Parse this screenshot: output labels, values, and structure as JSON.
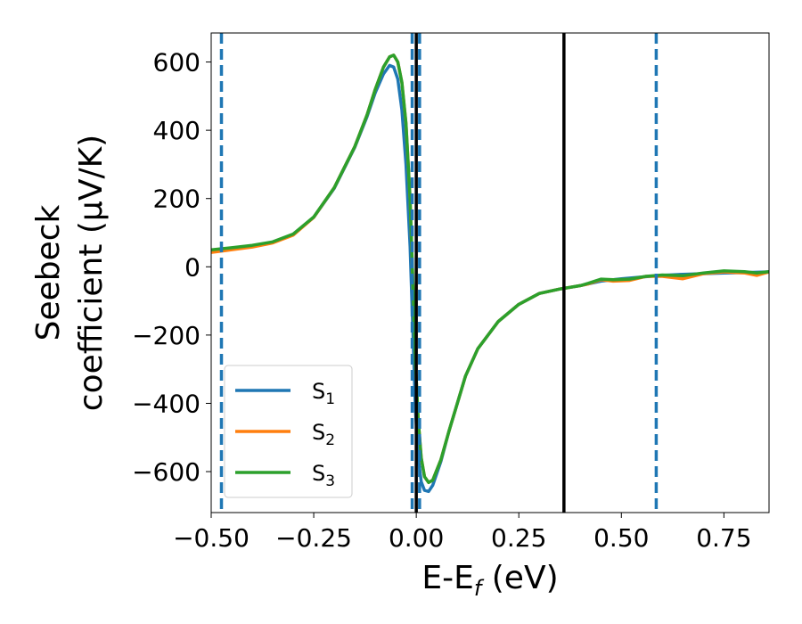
{
  "chart_data": {
    "type": "line",
    "xlabel": "E-E",
    "xlabel_sub": "f",
    "xlabel_unit": " (eV)",
    "ylabel_line1": "Seebeck",
    "ylabel_line2": "coefficient  (μV/K)",
    "xlim": [
      -0.5,
      0.86
    ],
    "ylim": [
      -720,
      685
    ],
    "xticks": [
      -0.5,
      -0.25,
      0.0,
      0.25,
      0.5,
      0.75
    ],
    "xtick_labels": [
      "−0.50",
      "−0.25",
      "0.00",
      "0.25",
      "0.50",
      "0.75"
    ],
    "yticks": [
      600,
      400,
      200,
      0,
      -200,
      -400,
      -600
    ],
    "ytick_labels": [
      "600",
      "400",
      "200",
      "0",
      "−200",
      "−400",
      "−600"
    ],
    "grid": false,
    "legend_position": "lower-left",
    "vlines": [
      {
        "x": -0.475,
        "style": "dashed",
        "color": "#1f77b4"
      },
      {
        "x": -0.01,
        "style": "dashed",
        "color": "#1f77b4"
      },
      {
        "x": 0.008,
        "style": "dashed",
        "color": "#1f77b4"
      },
      {
        "x": 0.0,
        "style": "solid",
        "color": "#000000"
      },
      {
        "x": 0.36,
        "style": "solid",
        "color": "#000000"
      },
      {
        "x": 0.585,
        "style": "dashed",
        "color": "#1f77b4"
      }
    ],
    "series": [
      {
        "name": "S",
        "sub": "1",
        "color": "#1f77b4",
        "points": [
          [
            -0.5,
            48
          ],
          [
            -0.45,
            55
          ],
          [
            -0.4,
            62
          ],
          [
            -0.35,
            72
          ],
          [
            -0.3,
            95
          ],
          [
            -0.25,
            145
          ],
          [
            -0.2,
            230
          ],
          [
            -0.15,
            350
          ],
          [
            -0.12,
            440
          ],
          [
            -0.1,
            510
          ],
          [
            -0.08,
            565
          ],
          [
            -0.065,
            590
          ],
          [
            -0.055,
            585
          ],
          [
            -0.045,
            550
          ],
          [
            -0.035,
            460
          ],
          [
            -0.025,
            300
          ],
          [
            -0.015,
            60
          ],
          [
            -0.008,
            -200
          ],
          [
            -0.002,
            -420
          ],
          [
            0.005,
            -560
          ],
          [
            0.012,
            -630
          ],
          [
            0.02,
            -655
          ],
          [
            0.03,
            -658
          ],
          [
            0.04,
            -640
          ],
          [
            0.06,
            -570
          ],
          [
            0.08,
            -480
          ],
          [
            0.1,
            -400
          ],
          [
            0.12,
            -320
          ],
          [
            0.15,
            -240
          ],
          [
            0.2,
            -160
          ],
          [
            0.25,
            -110
          ],
          [
            0.3,
            -78
          ],
          [
            0.35,
            -65
          ],
          [
            0.4,
            -55
          ],
          [
            0.45,
            -42
          ],
          [
            0.5,
            -35
          ],
          [
            0.55,
            -30
          ],
          [
            0.6,
            -25
          ],
          [
            0.65,
            -22
          ],
          [
            0.7,
            -20
          ],
          [
            0.75,
            -18
          ],
          [
            0.8,
            -17
          ],
          [
            0.86,
            -15
          ]
        ]
      },
      {
        "name": "S",
        "sub": "2",
        "color": "#ff7f0e",
        "points": [
          [
            -0.5,
            42
          ],
          [
            -0.45,
            50
          ],
          [
            -0.4,
            58
          ],
          [
            -0.35,
            70
          ],
          [
            -0.3,
            93
          ],
          [
            -0.25,
            145
          ],
          [
            -0.2,
            232
          ],
          [
            -0.15,
            352
          ],
          [
            -0.12,
            445
          ],
          [
            -0.1,
            520
          ],
          [
            -0.08,
            585
          ],
          [
            -0.065,
            615
          ],
          [
            -0.055,
            620
          ],
          [
            -0.045,
            600
          ],
          [
            -0.035,
            540
          ],
          [
            -0.025,
            420
          ],
          [
            -0.015,
            200
          ],
          [
            -0.008,
            -60
          ],
          [
            -0.002,
            -280
          ],
          [
            0.005,
            -450
          ],
          [
            0.012,
            -560
          ],
          [
            0.02,
            -615
          ],
          [
            0.03,
            -632
          ],
          [
            0.04,
            -625
          ],
          [
            0.06,
            -565
          ],
          [
            0.08,
            -480
          ],
          [
            0.1,
            -400
          ],
          [
            0.12,
            -320
          ],
          [
            0.15,
            -240
          ],
          [
            0.2,
            -160
          ],
          [
            0.25,
            -110
          ],
          [
            0.3,
            -78
          ],
          [
            0.35,
            -65
          ],
          [
            0.4,
            -55
          ],
          [
            0.42,
            -50
          ],
          [
            0.45,
            -38
          ],
          [
            0.48,
            -42
          ],
          [
            0.52,
            -40
          ],
          [
            0.56,
            -28
          ],
          [
            0.6,
            -28
          ],
          [
            0.65,
            -35
          ],
          [
            0.7,
            -20
          ],
          [
            0.75,
            -15
          ],
          [
            0.8,
            -18
          ],
          [
            0.83,
            -25
          ],
          [
            0.86,
            -15
          ]
        ]
      },
      {
        "name": "S",
        "sub": "3",
        "color": "#2ca02c",
        "points": [
          [
            -0.5,
            50
          ],
          [
            -0.45,
            56
          ],
          [
            -0.4,
            63
          ],
          [
            -0.35,
            73
          ],
          [
            -0.3,
            96
          ],
          [
            -0.25,
            146
          ],
          [
            -0.2,
            232
          ],
          [
            -0.15,
            352
          ],
          [
            -0.12,
            445
          ],
          [
            -0.1,
            520
          ],
          [
            -0.08,
            585
          ],
          [
            -0.065,
            615
          ],
          [
            -0.055,
            620
          ],
          [
            -0.045,
            600
          ],
          [
            -0.035,
            540
          ],
          [
            -0.025,
            420
          ],
          [
            -0.015,
            200
          ],
          [
            -0.008,
            -60
          ],
          [
            -0.002,
            -280
          ],
          [
            0.005,
            -450
          ],
          [
            0.012,
            -560
          ],
          [
            0.02,
            -615
          ],
          [
            0.03,
            -632
          ],
          [
            0.04,
            -625
          ],
          [
            0.06,
            -565
          ],
          [
            0.08,
            -480
          ],
          [
            0.1,
            -400
          ],
          [
            0.12,
            -320
          ],
          [
            0.15,
            -240
          ],
          [
            0.2,
            -160
          ],
          [
            0.25,
            -110
          ],
          [
            0.3,
            -78
          ],
          [
            0.35,
            -65
          ],
          [
            0.4,
            -55
          ],
          [
            0.42,
            -48
          ],
          [
            0.45,
            -36
          ],
          [
            0.48,
            -38
          ],
          [
            0.52,
            -36
          ],
          [
            0.56,
            -28
          ],
          [
            0.6,
            -24
          ],
          [
            0.65,
            -26
          ],
          [
            0.7,
            -18
          ],
          [
            0.75,
            -12
          ],
          [
            0.8,
            -14
          ],
          [
            0.83,
            -18
          ],
          [
            0.86,
            -14
          ]
        ]
      }
    ]
  }
}
